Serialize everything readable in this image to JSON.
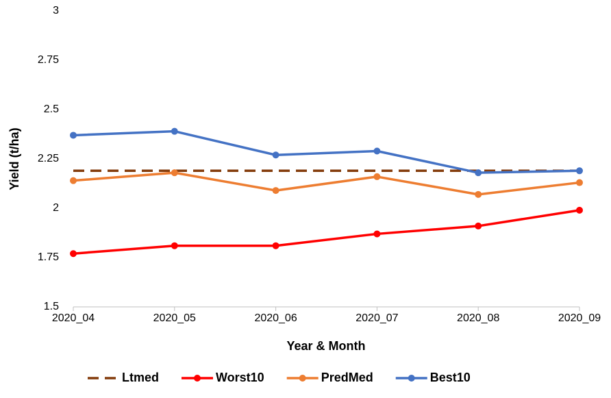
{
  "chart_data": {
    "type": "line",
    "x_label": "Year & Month",
    "y_label": "Yield (t/ha)",
    "categories": [
      "2020_04",
      "2020_05",
      "2020_06",
      "2020_07",
      "2020_08",
      "2020_09"
    ],
    "series": [
      {
        "name": "Ltmed",
        "color": "#843c0c",
        "dashed": true,
        "markers": false,
        "values": [
          2.19,
          2.19,
          2.19,
          2.19,
          2.19,
          2.19
        ]
      },
      {
        "name": "Worst10",
        "color": "#ff0000",
        "dashed": false,
        "markers": true,
        "values": [
          1.77,
          1.81,
          1.81,
          1.87,
          1.91,
          1.99
        ]
      },
      {
        "name": "PredMed",
        "color": "#ed7d31",
        "dashed": false,
        "markers": true,
        "values": [
          2.14,
          2.18,
          2.09,
          2.16,
          2.07,
          2.13
        ]
      },
      {
        "name": "Best10",
        "color": "#4472c4",
        "dashed": false,
        "markers": true,
        "values": [
          2.37,
          2.39,
          2.27,
          2.29,
          2.18,
          2.19
        ]
      }
    ],
    "ylim": [
      1.5,
      3
    ],
    "yticks": [
      1.5,
      1.75,
      2,
      2.25,
      2.5,
      2.75,
      3
    ],
    "grid": false
  }
}
